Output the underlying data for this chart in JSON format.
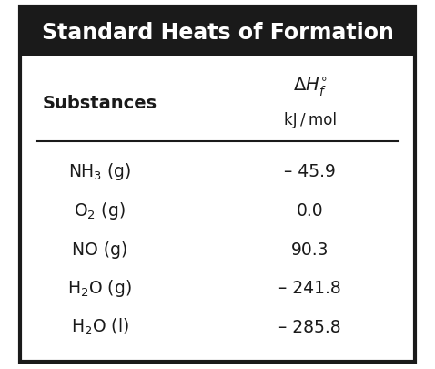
{
  "title": "Standard Heats of Formation",
  "title_bg": "#1a1a1a",
  "title_color": "#ffffff",
  "title_fontsize": 17,
  "header_col1": "Substances",
  "header_col2_line2": "kJ / mol",
  "col1_fontsize": 13,
  "col2_fontsize": 13,
  "substances": [
    "NH₃ (g)",
    "O₂ (g)",
    "NO (g)",
    "H₂O (g)",
    "H₂O (l)"
  ],
  "values": [
    "– 45.9",
    "0.0",
    "90.3",
    "– 241.8",
    "– 285.8"
  ],
  "bg_color": "#ffffff",
  "border_color": "#1a1a1a",
  "line_color": "#1a1a1a",
  "text_color": "#1a1a1a"
}
